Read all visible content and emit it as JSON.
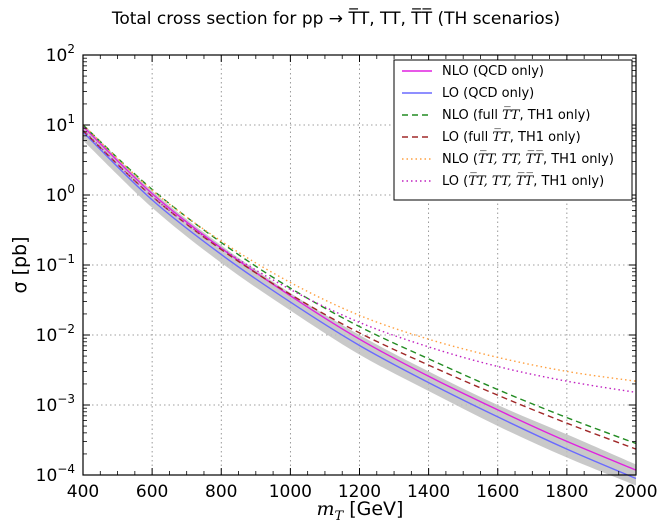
{
  "chart_data": {
    "type": "line",
    "title": "Total cross section for pp → T̅T, TT, T̅T̅ (TH scenarios)",
    "xlabel": "m_T [GeV]",
    "xlabel_main": "m",
    "xlabel_sub": "T",
    "xlabel_unit": "[GeV]",
    "ylabel": "σ [pb]",
    "xlim": [
      400,
      2000
    ],
    "ylim_log10": [
      -4,
      2
    ],
    "yscale": "log",
    "grid": true,
    "legend_position": "top-right",
    "x_ticks": [
      "400",
      "600",
      "800",
      "1000",
      "1200",
      "1400",
      "1600",
      "1800",
      "2000"
    ],
    "x_tick_values": [
      400,
      600,
      800,
      1000,
      1200,
      1400,
      1600,
      1800,
      2000
    ],
    "y_ticks": [
      {
        "base": "10",
        "exp": "−4",
        "log": -4
      },
      {
        "base": "10",
        "exp": "−3",
        "log": -3
      },
      {
        "base": "10",
        "exp": "−2",
        "log": -2
      },
      {
        "base": "10",
        "exp": "−1",
        "log": -1
      },
      {
        "base": "10",
        "exp": "0",
        "log": 0
      },
      {
        "base": "10",
        "exp": "1",
        "log": 1
      },
      {
        "base": "10",
        "exp": "2",
        "log": 2
      }
    ],
    "x": [
      400,
      600,
      800,
      1000,
      1200,
      1400,
      1600,
      1800,
      2000
    ],
    "band": {
      "name": "LO uncertainty",
      "color": "#c0c0c0",
      "upper_log10": [
        1.02,
        0.06,
        -0.72,
        -1.4,
        -2.0,
        -2.52,
        -3.0,
        -3.42,
        -3.85
      ],
      "lower_log10": [
        0.78,
        -0.18,
        -0.97,
        -1.65,
        -2.28,
        -2.8,
        -3.3,
        -3.75,
        -4.15
      ]
    },
    "series": [
      {
        "name": "NLO (QCD only)",
        "legend_prefix": "NLO (QCD only)",
        "legend_suffix": "",
        "color": "#e020e0",
        "dash": "solid",
        "values_log10": [
          0.98,
          0.02,
          -0.76,
          -1.44,
          -2.06,
          -2.59,
          -3.07,
          -3.52,
          -3.93
        ]
      },
      {
        "name": "LO (QCD only)",
        "legend_prefix": "LO (QCD only)",
        "legend_suffix": "",
        "color": "#6a6aff",
        "dash": "solid",
        "values_log10": [
          0.9,
          -0.07,
          -0.85,
          -1.53,
          -2.15,
          -2.68,
          -3.17,
          -3.63,
          -4.05
        ]
      },
      {
        "name": "NLO (full T̅T, TH1 only)",
        "legend_prefix": "NLO (full ",
        "legend_suffix": ", TH1 only)",
        "legend_math": "T̅T",
        "color": "#228B22",
        "dash": "dashed",
        "values_log10": [
          1.0,
          0.08,
          -0.68,
          -1.33,
          -1.88,
          -2.34,
          -2.78,
          -3.18,
          -3.55
        ]
      },
      {
        "name": "LO (full T̅T, TH1 only)",
        "legend_prefix": "LO (full ",
        "legend_suffix": ", TH1 only)",
        "legend_math": "T̅T",
        "color": "#a02828",
        "dash": "dashed",
        "values_log10": [
          0.92,
          -0.02,
          -0.78,
          -1.42,
          -1.97,
          -2.43,
          -2.86,
          -3.26,
          -3.63
        ]
      },
      {
        "name": "NLO (T̅T, TT, T̅T̅, TH1 only)",
        "legend_prefix": "NLO (",
        "legend_suffix": ", TH1 only)",
        "legend_math": "T̅T, TT, T̅T̅",
        "color": "#ffa040",
        "dash": "dotted",
        "values_log10": [
          1.0,
          0.07,
          -0.66,
          -1.25,
          -1.72,
          -2.06,
          -2.32,
          -2.52,
          -2.66
        ]
      },
      {
        "name": "LO (T̅T, TT, T̅T̅, TH1 only)",
        "legend_prefix": "LO (",
        "legend_suffix": ", TH1 only)",
        "legend_math": "T̅T, TT, T̅T̅",
        "color": "#c020c0",
        "dash": "dotted",
        "values_log10": [
          0.93,
          -0.02,
          -0.76,
          -1.35,
          -1.82,
          -2.17,
          -2.45,
          -2.66,
          -2.82
        ]
      }
    ]
  }
}
